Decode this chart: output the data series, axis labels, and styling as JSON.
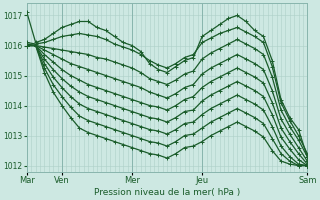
{
  "bg_color": "#cde8e2",
  "grid_color": "#aed0c8",
  "line_color": "#1a5c2a",
  "xlabel": "Pression niveau de la mer( hPa )",
  "ylim": [
    1011.8,
    1017.4
  ],
  "yticks": [
    1012,
    1013,
    1014,
    1015,
    1016,
    1017
  ],
  "day_positions": [
    0,
    1,
    3,
    5,
    8
  ],
  "day_labels": [
    "Mar",
    "Ven",
    "Mer",
    "Jeu",
    "Sam"
  ],
  "series": [
    [
      1017.1,
      1016.1,
      1016.2,
      1016.4,
      1016.6,
      1016.7,
      1016.8,
      1016.8,
      1016.6,
      1016.5,
      1016.3,
      1016.1,
      1016.0,
      1015.8,
      1015.4,
      1015.2,
      1015.1,
      1015.3,
      1015.5,
      1015.6,
      1016.3,
      1016.5,
      1016.7,
      1016.9,
      1017.0,
      1016.8,
      1016.5,
      1016.3,
      1015.5,
      1014.2,
      1013.6,
      1013.2,
      1012.3
    ],
    [
      1016.1,
      1016.05,
      1016.1,
      1016.2,
      1016.3,
      1016.35,
      1016.4,
      1016.35,
      1016.3,
      1016.2,
      1016.05,
      1015.95,
      1015.85,
      1015.7,
      1015.5,
      1015.35,
      1015.25,
      1015.4,
      1015.6,
      1015.7,
      1016.1,
      1016.25,
      1016.4,
      1016.5,
      1016.6,
      1016.45,
      1016.3,
      1016.1,
      1015.3,
      1014.1,
      1013.5,
      1013.0,
      1012.4
    ],
    [
      1016.05,
      1016.0,
      1015.95,
      1015.9,
      1015.85,
      1015.8,
      1015.75,
      1015.7,
      1015.6,
      1015.55,
      1015.45,
      1015.35,
      1015.25,
      1015.1,
      1014.9,
      1014.8,
      1014.7,
      1014.85,
      1015.05,
      1015.15,
      1015.55,
      1015.75,
      1015.9,
      1016.05,
      1016.2,
      1016.05,
      1015.9,
      1015.7,
      1014.95,
      1013.85,
      1013.3,
      1012.85,
      1012.3
    ],
    [
      1016.0,
      1016.0,
      1015.85,
      1015.7,
      1015.55,
      1015.4,
      1015.3,
      1015.2,
      1015.1,
      1015.0,
      1014.9,
      1014.8,
      1014.7,
      1014.6,
      1014.45,
      1014.35,
      1014.25,
      1014.4,
      1014.6,
      1014.7,
      1015.05,
      1015.25,
      1015.4,
      1015.55,
      1015.7,
      1015.55,
      1015.4,
      1015.2,
      1014.5,
      1013.55,
      1013.05,
      1012.6,
      1012.15
    ],
    [
      1016.0,
      1016.0,
      1015.7,
      1015.45,
      1015.2,
      1015.0,
      1014.85,
      1014.7,
      1014.6,
      1014.5,
      1014.4,
      1014.3,
      1014.2,
      1014.1,
      1014.0,
      1013.95,
      1013.85,
      1014.0,
      1014.2,
      1014.3,
      1014.6,
      1014.8,
      1014.95,
      1015.1,
      1015.25,
      1015.1,
      1014.95,
      1014.75,
      1014.1,
      1013.25,
      1012.8,
      1012.4,
      1012.05
    ],
    [
      1016.0,
      1016.0,
      1015.55,
      1015.2,
      1014.9,
      1014.65,
      1014.45,
      1014.3,
      1014.2,
      1014.1,
      1014.0,
      1013.9,
      1013.8,
      1013.7,
      1013.6,
      1013.55,
      1013.45,
      1013.6,
      1013.8,
      1013.85,
      1014.15,
      1014.35,
      1014.5,
      1014.65,
      1014.8,
      1014.65,
      1014.5,
      1014.3,
      1013.7,
      1012.95,
      1012.55,
      1012.2,
      1012.0
    ],
    [
      1016.0,
      1016.0,
      1015.4,
      1014.95,
      1014.6,
      1014.3,
      1014.05,
      1013.9,
      1013.8,
      1013.7,
      1013.6,
      1013.5,
      1013.4,
      1013.3,
      1013.2,
      1013.15,
      1013.05,
      1013.2,
      1013.4,
      1013.45,
      1013.7,
      1013.9,
      1014.05,
      1014.2,
      1014.35,
      1014.2,
      1014.05,
      1013.85,
      1013.3,
      1012.65,
      1012.3,
      1012.05,
      1012.0
    ],
    [
      1016.0,
      1016.0,
      1015.25,
      1014.7,
      1014.3,
      1013.95,
      1013.65,
      1013.5,
      1013.4,
      1013.3,
      1013.2,
      1013.1,
      1013.0,
      1012.9,
      1012.8,
      1012.75,
      1012.65,
      1012.8,
      1013.0,
      1013.05,
      1013.25,
      1013.45,
      1013.6,
      1013.75,
      1013.9,
      1013.75,
      1013.6,
      1013.4,
      1012.9,
      1012.4,
      1012.15,
      1012.0,
      1012.0
    ],
    [
      1016.0,
      1016.0,
      1015.1,
      1014.45,
      1014.0,
      1013.6,
      1013.25,
      1013.1,
      1013.0,
      1012.9,
      1012.8,
      1012.7,
      1012.6,
      1012.5,
      1012.4,
      1012.35,
      1012.25,
      1012.4,
      1012.6,
      1012.65,
      1012.8,
      1013.0,
      1013.15,
      1013.3,
      1013.45,
      1013.3,
      1013.15,
      1012.95,
      1012.5,
      1012.15,
      1012.05,
      1012.0,
      1012.0
    ]
  ],
  "n_points": 33,
  "marker": "+",
  "markersize": 3,
  "linewidth": 0.9
}
